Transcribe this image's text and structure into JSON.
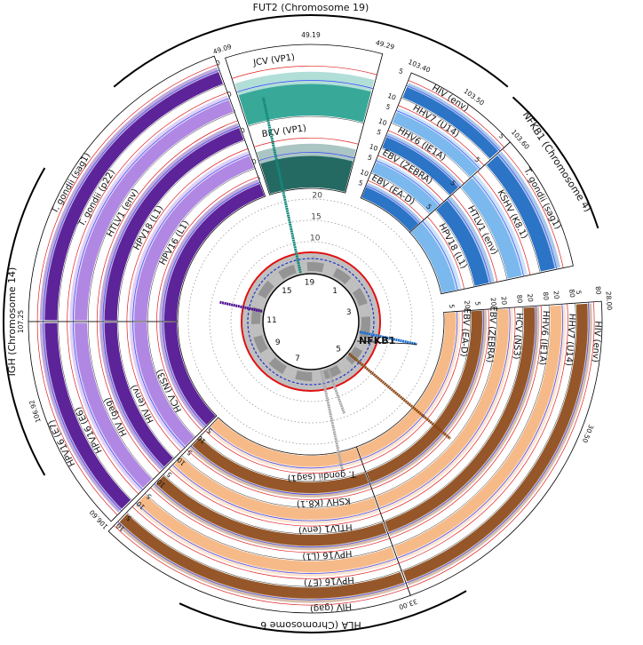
{
  "center_plot": {
    "radial_ticks": [
      "5",
      "10",
      "15",
      "20"
    ],
    "chromosomes": [
      "1",
      "3",
      "5",
      "7",
      "9",
      "11",
      "15",
      "19"
    ],
    "highlight": "NFKB1"
  },
  "panels": [
    {
      "title": "FUT2 (Chromosome 19)",
      "positions": [
        "49.09",
        "49.19",
        "49.29"
      ],
      "sections": [
        {
          "tracks": [
            {
              "label": "JCV (VP1)",
              "ticks": [
                "5",
                "10",
                "20"
              ]
            },
            {
              "label": "BKV (VP1)",
              "ticks": [
                "5",
                "10",
                "20"
              ]
            }
          ]
        }
      ]
    },
    {
      "title": "NFKB1 (Chromosome 4)",
      "positions": [
        "103.40",
        "103.50",
        "103.60"
      ],
      "sections": [
        {
          "tracks": [
            {
              "label": "HIV (env)",
              "ticks": [
                "5"
              ]
            },
            {
              "label": "HHV7 (U14)",
              "ticks": [
                "5",
                "10"
              ]
            },
            {
              "label": "HHV6 (IE1A)",
              "ticks": [
                "5",
                "10"
              ]
            },
            {
              "label": "EBV (ZEBRA)",
              "ticks": [
                "5",
                "10"
              ]
            },
            {
              "label": "EBV (EA-D)",
              "ticks": [
                "5",
                "10"
              ]
            }
          ]
        },
        {
          "tracks": [
            {
              "label": "T. gondii (sag1)",
              "ticks": [
                "5"
              ]
            },
            {
              "label": "KSHV (K8.1)",
              "ticks": [
                "5"
              ]
            },
            {
              "label": "HTLV1 (env)",
              "ticks": [
                "5"
              ]
            },
            {
              "label": "HPV18 (L1)",
              "ticks": [
                "5"
              ]
            }
          ]
        }
      ]
    },
    {
      "title": "HLA (Chromosome 6",
      "positions": [
        "28.00",
        "30.50",
        "33.00"
      ],
      "sections": [
        {
          "tracks": [
            {
              "label": "HIV (env)",
              "ticks": [
                "5",
                "80"
              ]
            },
            {
              "label": "HHV7 (U14)",
              "ticks": [
                "20",
                "80"
              ]
            },
            {
              "label": "HHV6 (IE1A)",
              "ticks": [
                "20",
                "80"
              ]
            },
            {
              "label": "HCV (NS3)",
              "ticks": [
                "20",
                "80"
              ]
            },
            {
              "label": "EBV (ZEBRA)",
              "ticks": [
                "5",
                "20"
              ]
            },
            {
              "label": "EBV (EA-D)",
              "ticks": [
                "5",
                "20"
              ]
            }
          ]
        },
        {
          "tracks": [
            {
              "label": "HIV (gag)",
              "ticks": []
            },
            {
              "label": "HPV16 (E7)",
              "ticks": []
            },
            {
              "label": "HPV16 (L1)",
              "ticks": []
            },
            {
              "label": "HTLV1 (env)",
              "ticks": []
            },
            {
              "label": "KSHV (K8.1)",
              "ticks": []
            },
            {
              "label": "T. gondii (sag1)",
              "ticks": []
            }
          ]
        }
      ]
    },
    {
      "title": "IGH (Chromosome 14)",
      "positions": [
        "107.25",
        "106.92",
        "106.60"
      ],
      "sections": [
        {
          "tracks": [
            {
              "label": "T. gondii (sag1)",
              "ticks": []
            },
            {
              "label": "T. gondii (p22)",
              "ticks": []
            },
            {
              "label": "HTLV1 (env)",
              "ticks": []
            },
            {
              "label": "HPV18 (L1)",
              "ticks": []
            },
            {
              "label": "HPV16 (L1)",
              "ticks": []
            }
          ]
        },
        {
          "tracks": [
            {
              "label": "HPV16 (E7)",
              "ticks": [
                "5",
                "10"
              ]
            },
            {
              "label": "HPV16 (E6)",
              "ticks": [
                "5",
                "10"
              ]
            },
            {
              "label": "HIV (gag)",
              "ticks": [
                "5",
                "10"
              ]
            },
            {
              "label": "HIV (env)",
              "ticks": [
                "5",
                "10"
              ]
            },
            {
              "label": "HCV (NS3)",
              "ticks": [
                "5",
                "10"
              ]
            }
          ]
        }
      ]
    }
  ]
}
